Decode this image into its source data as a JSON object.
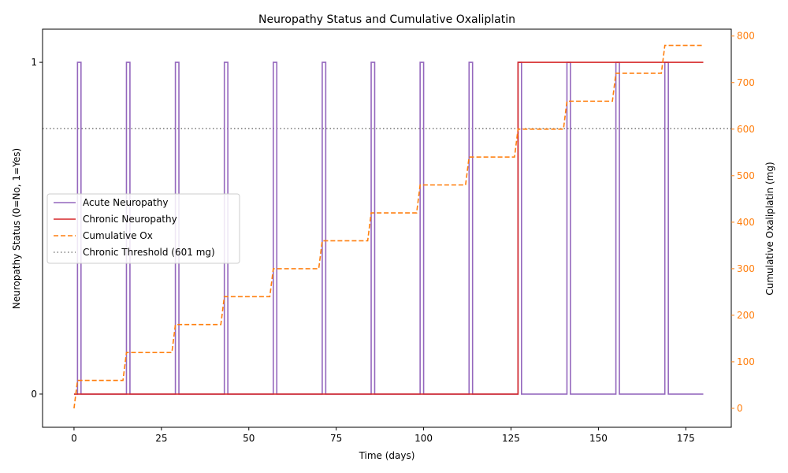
{
  "colors": {
    "acute": "#9467bd",
    "chronic": "#d62728",
    "cumulative": "#ff7f0e",
    "threshold": "#7f7f7f",
    "right_axis": "#ff7f0e"
  },
  "chart_data": {
    "type": "line",
    "title": "Neuropathy Status and Cumulative Oxaliplatin",
    "xlabel": "Time (days)",
    "ylabel_left": "Neuropathy Status (0=No, 1=Yes)",
    "ylabel_right": "Cumulative Oxaliplatin (mg)",
    "xlim": [
      -9,
      188
    ],
    "ylim_left": [
      -0.1,
      1.1
    ],
    "ylim_right": [
      -40.7,
      814.8
    ],
    "xticks": [
      0,
      25,
      50,
      75,
      100,
      125,
      150,
      175
    ],
    "yticks_left": [
      0,
      1
    ],
    "yticks_right": [
      0,
      100,
      200,
      300,
      400,
      500,
      600,
      700,
      800
    ],
    "legend_position": "center-left",
    "grid": false,
    "cycle_starts": [
      1,
      15,
      29,
      43,
      57,
      71,
      85,
      99,
      113,
      127,
      141,
      155,
      169
    ],
    "acute_duration_days": 1,
    "dose_per_cycle_mg": 60,
    "chronic_onset_day": 127,
    "threshold_mg": 601,
    "x_end": 180,
    "series": [
      {
        "name": "Acute Neuropathy",
        "key": "acute",
        "style": "solid"
      },
      {
        "name": "Chronic Neuropathy",
        "key": "chronic",
        "style": "solid"
      },
      {
        "name": "Cumulative Ox",
        "key": "cumulative",
        "style": "dashed"
      },
      {
        "name": "Chronic Threshold (601 mg)",
        "key": "threshold",
        "style": "dotted"
      }
    ]
  }
}
